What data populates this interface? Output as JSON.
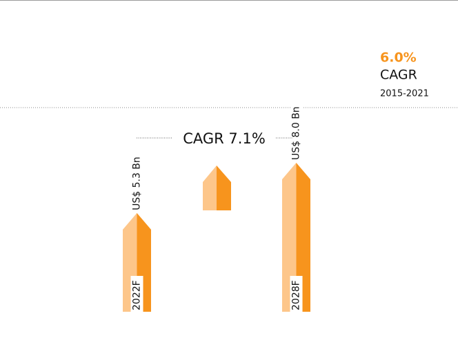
{
  "chart_data": {
    "type": "bar",
    "categories": [
      "2022F",
      "2028F"
    ],
    "values": [
      5.3,
      8.0
    ],
    "value_labels": [
      "US$ 5.3 Bn",
      "US$ 8.0 Bn"
    ],
    "colors": [
      "#fdc68a",
      "#f7941d"
    ],
    "annotation": "CAGR 7.1%",
    "side_note": {
      "value": "6.0%",
      "label": "CAGR",
      "period": "2015-2021"
    }
  }
}
